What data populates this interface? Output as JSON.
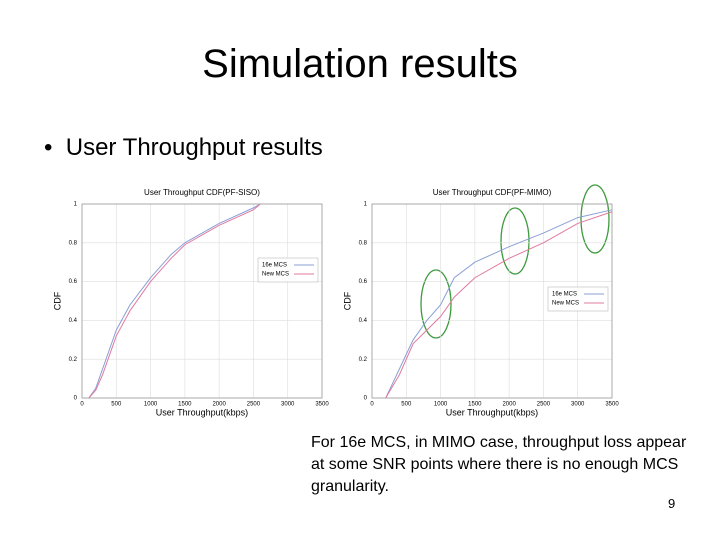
{
  "slide": {
    "title": "Simulation results",
    "bullet": "User Throughput results",
    "caption": "For 16e MCS, in MIMO case, throughput loss appear at some SNR points where there is no enough MCS granularity.",
    "page_number": "9"
  },
  "chart_data": [
    {
      "type": "line",
      "title": "User Throughput CDF(PF-SISO)",
      "x_label": "User Throughput(kbps)",
      "y_label": "CDF",
      "x": [
        100,
        200,
        300,
        400,
        500,
        700,
        1000,
        1300,
        1500,
        2000,
        2500,
        2600
      ],
      "series": [
        {
          "name": "16e MCS",
          "color": "#8a9fd6",
          "values": [
            0,
            0.05,
            0.15,
            0.25,
            0.35,
            0.48,
            0.62,
            0.74,
            0.8,
            0.9,
            0.98,
            1
          ]
        },
        {
          "name": "New MCS",
          "color": "#e07aa0",
          "values": [
            0,
            0.04,
            0.12,
            0.22,
            0.32,
            0.45,
            0.6,
            0.72,
            0.79,
            0.89,
            0.97,
            1
          ]
        }
      ],
      "xlim": [
        0,
        3500
      ],
      "xticks": [
        0,
        500,
        1000,
        1500,
        2000,
        2500,
        3000,
        3500
      ],
      "ylim": [
        0,
        1
      ],
      "yticks": [
        0,
        0.2,
        0.4,
        0.6,
        0.8,
        1
      ],
      "grid": true,
      "legend": "center right"
    },
    {
      "type": "line",
      "title": "User Throughput CDF(PF-MIMO)",
      "x_label": "User Throughput(kbps)",
      "y_label": "CDF",
      "x": [
        200,
        400,
        600,
        800,
        1000,
        1200,
        1500,
        2000,
        2500,
        3000,
        3500
      ],
      "series": [
        {
          "name": "16e MCS",
          "color": "#8a9fd6",
          "values": [
            0,
            0.15,
            0.3,
            0.4,
            0.48,
            0.62,
            0.7,
            0.78,
            0.85,
            0.93,
            0.97
          ]
        },
        {
          "name": "New MCS",
          "color": "#e07aa0",
          "values": [
            0,
            0.12,
            0.28,
            0.35,
            0.42,
            0.52,
            0.62,
            0.72,
            0.8,
            0.9,
            0.96
          ]
        }
      ],
      "xlim": [
        0,
        3500
      ],
      "xticks": [
        0,
        500,
        1000,
        1500,
        2000,
        2500,
        3000,
        3500
      ],
      "ylim": [
        0,
        1
      ],
      "yticks": [
        0,
        0.2,
        0.4,
        0.6,
        0.8,
        1
      ],
      "grid": true,
      "legend": "center right"
    }
  ]
}
